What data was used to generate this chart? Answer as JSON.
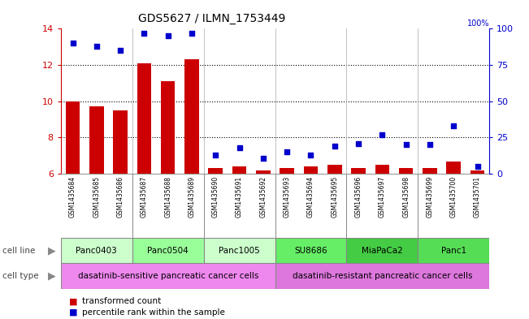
{
  "title": "GDS5627 / ILMN_1753449",
  "samples": [
    "GSM1435684",
    "GSM1435685",
    "GSM1435686",
    "GSM1435687",
    "GSM1435688",
    "GSM1435689",
    "GSM1435690",
    "GSM1435691",
    "GSM1435692",
    "GSM1435693",
    "GSM1435694",
    "GSM1435695",
    "GSM1435696",
    "GSM1435697",
    "GSM1435698",
    "GSM1435699",
    "GSM1435700",
    "GSM1435701"
  ],
  "transformed_count": [
    10.0,
    9.7,
    9.5,
    12.1,
    11.1,
    12.3,
    6.3,
    6.4,
    6.2,
    6.3,
    6.4,
    6.5,
    6.3,
    6.5,
    6.3,
    6.3,
    6.7,
    6.2
  ],
  "percentile_rank": [
    90,
    88,
    85,
    97,
    95,
    97,
    13,
    18,
    11,
    15,
    13,
    19,
    21,
    27,
    20,
    20,
    33,
    5
  ],
  "ylim_left": [
    6,
    14
  ],
  "ylim_right": [
    0,
    100
  ],
  "yticks_left": [
    6,
    8,
    10,
    12,
    14
  ],
  "yticks_right": [
    0,
    25,
    50,
    75,
    100
  ],
  "bar_color": "#cc0000",
  "scatter_color": "#0000cc",
  "cell_lines": [
    {
      "name": "Panc0403",
      "start": 0,
      "end": 2,
      "color": "#ccffcc"
    },
    {
      "name": "Panc0504",
      "start": 3,
      "end": 5,
      "color": "#99ff99"
    },
    {
      "name": "Panc1005",
      "start": 6,
      "end": 8,
      "color": "#ccffcc"
    },
    {
      "name": "SU8686",
      "start": 9,
      "end": 11,
      "color": "#66ee66"
    },
    {
      "name": "MiaPaCa2",
      "start": 12,
      "end": 14,
      "color": "#44cc44"
    },
    {
      "name": "Panc1",
      "start": 15,
      "end": 17,
      "color": "#55dd55"
    }
  ],
  "cell_types": [
    {
      "name": "dasatinib-sensitive pancreatic cancer cells",
      "start": 0,
      "end": 8,
      "color": "#ee88ee"
    },
    {
      "name": "dasatinib-resistant pancreatic cancer cells",
      "start": 9,
      "end": 17,
      "color": "#dd77dd"
    }
  ],
  "legend_items": [
    {
      "label": "transformed count",
      "color": "#cc0000"
    },
    {
      "label": "percentile rank within the sample",
      "color": "#0000cc"
    }
  ],
  "background_color": "#ffffff",
  "axis_color_left": "#cc0000",
  "axis_color_right": "#0000cc",
  "sample_label_bg": "#bbbbbb",
  "dividers": [
    2.5,
    5.5,
    8.5,
    11.5,
    14.5
  ]
}
